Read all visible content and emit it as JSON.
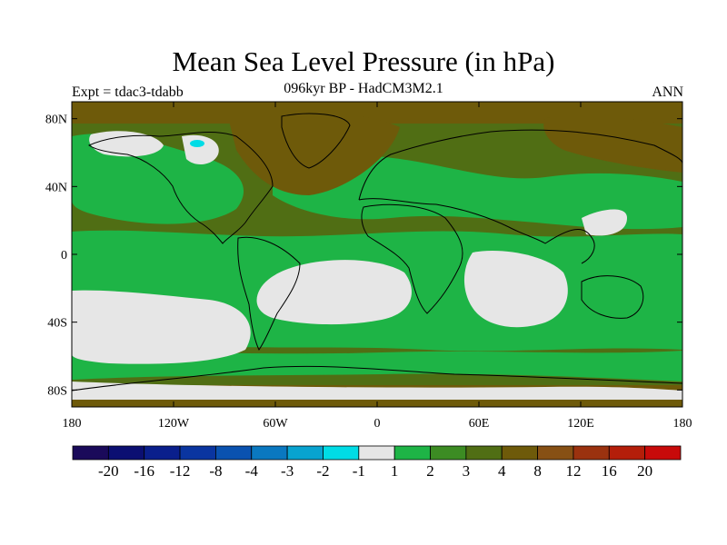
{
  "title": "Mean Sea Level Pressure (in hPa)",
  "subtitle": "096kyr BP - HadCM3M2.1",
  "left_label": "Expt = tdac3-tdabb",
  "right_label": "ANN",
  "lat_ticks": [
    {
      "value": 80,
      "label": "80N"
    },
    {
      "value": 40,
      "label": "40N"
    },
    {
      "value": 0,
      "label": "0"
    },
    {
      "value": -40,
      "label": "40S"
    },
    {
      "value": -80,
      "label": "80S"
    }
  ],
  "lon_ticks": [
    {
      "value": -180,
      "label": "180"
    },
    {
      "value": -120,
      "label": "120W"
    },
    {
      "value": -60,
      "label": "60W"
    },
    {
      "value": 0,
      "label": "0"
    },
    {
      "value": 60,
      "label": "60E"
    },
    {
      "value": 120,
      "label": "120E"
    },
    {
      "value": 180,
      "label": "180"
    }
  ],
  "colorbar": {
    "colors": [
      "#1a0a5a",
      "#0b0f72",
      "#0a1f8c",
      "#0a35a0",
      "#0a52b0",
      "#0a78c0",
      "#08a3d0",
      "#00dce6",
      "#e6e6e6",
      "#1eb446",
      "#3c8c23",
      "#506e14",
      "#6e5a0a",
      "#875014",
      "#9b320f",
      "#b41e0a",
      "#c80a0a"
    ],
    "labels": [
      "-20",
      "-16",
      "-12",
      "-8",
      "-4",
      "-3",
      "-2",
      "-1",
      "1",
      "2",
      "3",
      "4",
      "8",
      "12",
      "16",
      "20"
    ]
  },
  "colors": {
    "land_outline": "#000000",
    "base_field": "#506e14"
  }
}
